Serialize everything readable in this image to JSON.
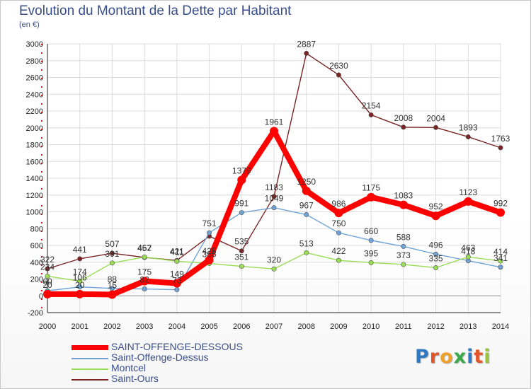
{
  "header": {
    "title": "Evolution du Montant de la Dette par Habitant",
    "subtitle": "(en €)"
  },
  "logo": {
    "text": [
      "P",
      "r",
      "o",
      "x",
      "i",
      "t",
      "i"
    ]
  },
  "chart_data": {
    "type": "line",
    "x": [
      2000,
      2001,
      2002,
      2003,
      2004,
      2005,
      2006,
      2007,
      2008,
      2009,
      2010,
      2011,
      2012,
      2013,
      2014
    ],
    "ylim": [
      -200,
      3000
    ],
    "yticks": [
      -200,
      0,
      200,
      400,
      600,
      800,
      1000,
      1200,
      1400,
      1600,
      1800,
      2000,
      2200,
      2400,
      2600,
      2800,
      3000
    ],
    "grid": true,
    "legend_position": "bottom-left",
    "series": [
      {
        "name": "SAINT-OFFENGE-DESSOUS",
        "color": "#ff0000",
        "values": [
          20,
          20,
          15,
          175,
          149,
          425,
          1379,
          1961,
          1250,
          986,
          1175,
          1083,
          952,
          1123,
          992
        ],
        "labels": [
          "20",
          "20",
          "15",
          "175",
          "149",
          "425",
          "1379",
          "1961",
          "1250",
          "986",
          "1175",
          "1083",
          "952",
          "1123",
          "992"
        ]
      },
      {
        "name": "Saint-Offenge-Dessus",
        "color": "#6fa3d6",
        "values": [
          60,
          106,
          88,
          82,
          73,
          751,
          991,
          1049,
          967,
          750,
          660,
          588,
          496,
          418,
          341
        ],
        "labels": [
          "60",
          "106",
          "88",
          "82",
          "73",
          "751",
          "991",
          "1049",
          "967",
          "750",
          "660",
          "588",
          "496",
          "418",
          "341"
        ]
      },
      {
        "name": "Montcel",
        "color": "#99dd55",
        "values": [
          234,
          174,
          391,
          462,
          411,
          385,
          351,
          320,
          513,
          422,
          395,
          373,
          335,
          463,
          414
        ],
        "labels": [
          "234",
          "174",
          "391",
          "462",
          "411",
          "385",
          "351",
          "320",
          "513",
          "422",
          "395",
          "373",
          "335",
          "463",
          "414"
        ]
      },
      {
        "name": "Saint-Ours",
        "color": "#7a2424",
        "values": [
          322,
          441,
          507,
          457,
          421,
          710,
          535,
          1183,
          2887,
          2630,
          2154,
          2008,
          2004,
          1893,
          1763
        ],
        "labels": [
          "322",
          "441",
          "507",
          "457",
          "421",
          "",
          "535",
          "1183",
          "2887",
          "2630",
          "2154",
          "2008",
          "2004",
          "1893",
          "1763"
        ]
      }
    ]
  }
}
